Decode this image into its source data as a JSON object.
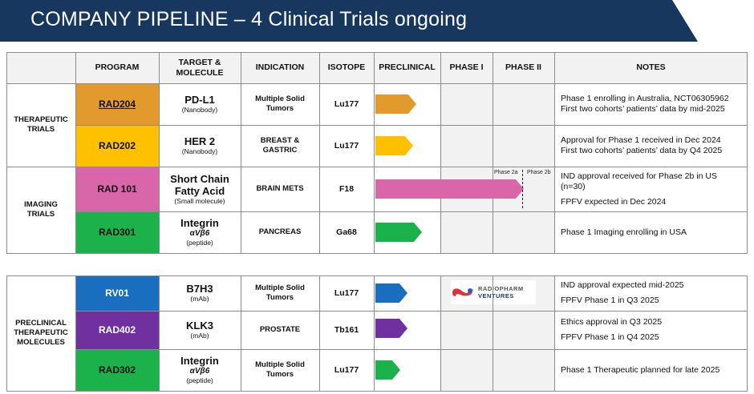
{
  "title": "COMPANY PIPELINE – 4 Clinical Trials ongoing",
  "headers": {
    "program": "PROGRAM",
    "target_line1": "TARGET &",
    "target_line2": "MOLECULE",
    "indication": "INDICATION",
    "isotope": "ISOTOPE",
    "preclinical": "PRECLINICAL",
    "phase1": "PHASE I",
    "phase2": "PHASE II",
    "notes": "NOTES"
  },
  "groups": {
    "therapeutic_1": "THERAPEUTIC",
    "therapeutic_2": "TRIALS",
    "imaging_1": "IMAGING",
    "imaging_2": "TRIALS",
    "preclinical_1": "PRECLINICAL",
    "preclinical_2": "THERAPEUTIC",
    "preclinical_3": "MOLECULES"
  },
  "rows": [
    {
      "program": "RAD204",
      "program_color": "#e39a2d",
      "target": "PD-L1",
      "target_sub": "(Nanobody)",
      "indication_1": "Multiple Solid",
      "indication_2": "Tumors",
      "isotope": "Lu177",
      "progress": 0.23,
      "notes": [
        "Phase 1 enrolling in Australia, NCT06305962",
        "First two cohorts’ patients’ data by mid-2025"
      ]
    },
    {
      "program": "RAD202",
      "program_color": "#ffc000",
      "target": "HER 2",
      "target_sub": "(Nanobody)",
      "indication_1": "BREAST &",
      "indication_2": "GASTRIC",
      "isotope": "Lu177",
      "progress": 0.21,
      "notes": [
        "Approval for Phase 1 received in Dec 2024",
        "First two cohorts’ patients’ data by Q4 2025"
      ]
    },
    {
      "program": "RAD 101",
      "program_color": "#d966a8",
      "target_1": "Short Chain",
      "target_2": "Fatty Acid",
      "target_sub": "(Small molecule)",
      "indication_1": "BRAIN METS",
      "isotope": "F18",
      "progress": 0.83,
      "phase2a": "Phase 2a",
      "phase2b": "Phase 2b",
      "notes": [
        "IND approval received for Phase 2b in US",
        "(n=30)",
        "FPFV expected in Dec 2024"
      ]
    },
    {
      "program": "RAD301",
      "program_color": "#1cb24b",
      "target": "Integrin",
      "target_it": "αVβ6",
      "target_sub": "(peptide)",
      "indication_1": "PANCREAS",
      "isotope": "Ga68",
      "progress": 0.26,
      "notes": [
        "Phase 1 Imaging enrolling in USA"
      ]
    },
    {
      "program": "RV01",
      "program_color": "#1a6ec0",
      "target": "B7H3",
      "target_sub": "(mAb)",
      "indication_1": "Multiple Solid",
      "indication_2": "Tumors",
      "isotope": "Lu177",
      "progress": 0.18,
      "notes": [
        "IND approval expected mid-2025",
        "FPFV Phase 1  in Q3 2025"
      ]
    },
    {
      "program": "RAD402",
      "program_color": "#7030a0",
      "target": "KLK3",
      "target_sub": "(mAb)",
      "indication_1": "PROSTATE",
      "isotope": "Tb161",
      "progress": 0.18,
      "notes": [
        "Ethics approval in Q3 2025",
        "FPFV Phase 1 in Q4 2025"
      ]
    },
    {
      "program": "RAD302",
      "program_color": "#1cb24b",
      "target": "Integrin",
      "target_it": "αVβ6",
      "target_sub": "(peptide)",
      "indication_1": "Multiple Solid",
      "indication_2": "Tumors",
      "isotope": "Lu177",
      "progress": 0.14,
      "notes": [
        "Phase 1 Therapeutic planned for late 2025"
      ]
    }
  ],
  "logo": {
    "line1": "RADIOPHARM",
    "line2": "VENTURES"
  }
}
